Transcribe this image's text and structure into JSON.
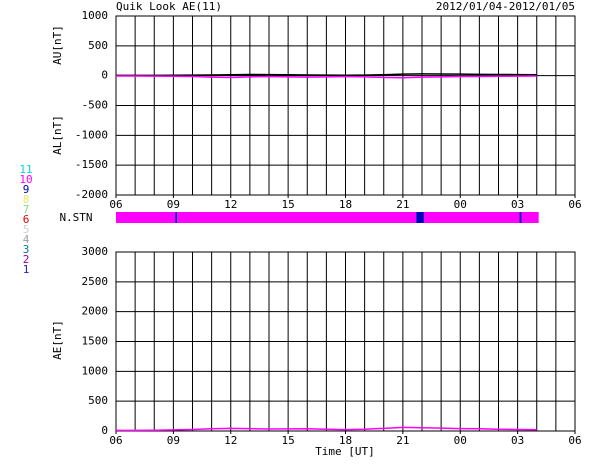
{
  "chart_data": [
    {
      "type": "line",
      "title": "Quik Look AE(11)",
      "subtitle": "2012/01/04-2012/01/05",
      "y_labels": [
        "AU[nT]",
        "AL[nT]"
      ],
      "x": [
        0,
        1,
        2,
        3,
        4,
        5,
        6,
        7,
        8,
        9,
        10,
        11,
        12,
        13,
        14,
        15,
        16,
        17,
        18,
        19,
        20,
        21,
        22
      ],
      "series": [
        {
          "name": "AU",
          "color": "#000000",
          "values": [
            5,
            5,
            5,
            8,
            10,
            12,
            15,
            20,
            18,
            15,
            12,
            10,
            8,
            10,
            15,
            25,
            30,
            28,
            25,
            22,
            20,
            18,
            15
          ]
        },
        {
          "name": "AL",
          "color": "#ff00ff",
          "values": [
            -5,
            -5,
            -8,
            -10,
            -15,
            -25,
            -30,
            -20,
            -15,
            -20,
            -25,
            -20,
            -15,
            -20,
            -30,
            -35,
            -25,
            -20,
            -15,
            -15,
            -10,
            -8,
            -5
          ]
        }
      ],
      "xlim": [
        0,
        24
      ],
      "xticks": [
        {
          "value": 0,
          "label": "06"
        },
        {
          "value": 3,
          "label": "09"
        },
        {
          "value": 6,
          "label": "12"
        },
        {
          "value": 9,
          "label": "15"
        },
        {
          "value": 12,
          "label": "18"
        },
        {
          "value": 15,
          "label": "21"
        },
        {
          "value": 18,
          "label": "00"
        },
        {
          "value": 21,
          "label": "03"
        },
        {
          "value": 24,
          "label": "06"
        }
      ],
      "ylim": [
        -2000,
        1000
      ],
      "yticks": [
        1000,
        500,
        0,
        -500,
        -1000,
        -1500,
        -2000
      ],
      "grid": true
    },
    {
      "type": "line",
      "y_labels": [
        "AE[nT]"
      ],
      "x_label": "Time [UT]",
      "x": [
        0,
        1,
        2,
        3,
        4,
        5,
        6,
        7,
        8,
        9,
        10,
        11,
        12,
        13,
        14,
        15,
        16,
        17,
        18,
        19,
        20,
        21,
        22
      ],
      "series": [
        {
          "name": "AE",
          "color": "#ff00ff",
          "values": [
            10,
            10,
            13,
            18,
            25,
            37,
            45,
            40,
            33,
            35,
            37,
            30,
            23,
            30,
            45,
            60,
            55,
            48,
            40,
            37,
            30,
            26,
            20
          ]
        }
      ],
      "xlim": [
        0,
        24
      ],
      "xticks": [
        {
          "value": 0,
          "label": "06"
        },
        {
          "value": 3,
          "label": "09"
        },
        {
          "value": 6,
          "label": "12"
        },
        {
          "value": 9,
          "label": "15"
        },
        {
          "value": 12,
          "label": "18"
        },
        {
          "value": 15,
          "label": "21"
        },
        {
          "value": 18,
          "label": "00"
        },
        {
          "value": 21,
          "label": "03"
        },
        {
          "value": 24,
          "label": "06"
        }
      ],
      "ylim": [
        0,
        3000
      ],
      "yticks": [
        3000,
        2500,
        2000,
        1500,
        1000,
        500,
        0
      ],
      "grid": true
    }
  ],
  "station_bar": {
    "label": "N.STN",
    "segments": [
      {
        "start": 0,
        "end": 3.1,
        "value": 10
      },
      {
        "start": 3.1,
        "end": 3.2,
        "value": 9
      },
      {
        "start": 3.2,
        "end": 15.7,
        "value": 10
      },
      {
        "start": 15.7,
        "end": 16.1,
        "value": 9
      },
      {
        "start": 16.1,
        "end": 21.1,
        "value": 10
      },
      {
        "start": 21.1,
        "end": 21.2,
        "value": 9
      },
      {
        "start": 21.2,
        "end": 22.1,
        "value": 10
      }
    ]
  },
  "station_legend": [
    {
      "label": "11",
      "color": "#00d8d8"
    },
    {
      "label": "10",
      "color": "#ff00ff"
    },
    {
      "label": "9",
      "color": "#0000c0"
    },
    {
      "label": "8",
      "color": "#e8e860"
    },
    {
      "label": "7",
      "color": "#80e080"
    },
    {
      "label": "6",
      "color": "#e00000"
    },
    {
      "label": "5",
      "color": "#d0d0d0"
    },
    {
      "label": "4",
      "color": "#a0a0a0"
    },
    {
      "label": "3",
      "color": "#008080"
    },
    {
      "label": "2",
      "color": "#a000a0"
    },
    {
      "label": "1",
      "color": "#2020c0"
    }
  ]
}
